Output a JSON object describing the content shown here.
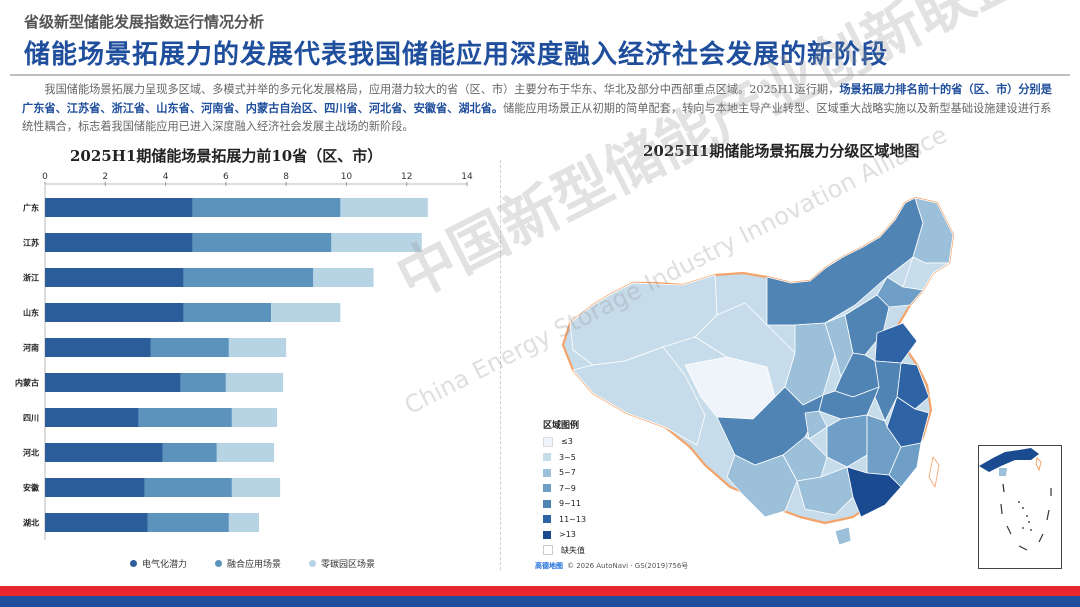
{
  "header": {
    "supertitle": "省级新型储能发展指数运行情况分析",
    "headline": "储能场景拓展力的发展代表我国储能应用深度融入经济社会发展的新阶段"
  },
  "summary": {
    "part1": "我国储能场景拓展力呈现多区域、多模式并举的多元化发展格局，应用潜力较大的省（区、市）主要分布于华东、华北及部分中西部重点区域。2025H1运行期，",
    "highlight": "场景拓展力排名前十的省（区、市）分别是广东省、江苏省、浙江省、山东省、河南省、内蒙古自治区、四川省、河北省、安徽省、湖北省。",
    "part2": "储能应用场景正从初期的简单配套，转向与本地主导产业转型、区域重大战略实施以及新型基础设施建设进行系统性耦合，标志着我国储能应用已进入深度融入经济社会发展主战场的新阶段。"
  },
  "left_chart_title": "2025H1期储能场景拓展力前10省（区、市）",
  "right_chart_title": "2025H1期储能场景拓展力分级区域地图",
  "chart_data": [
    {
      "type": "bar",
      "orientation": "horizontal",
      "stacked": true,
      "title": "2025H1期储能场景拓展力前10省（区、市）",
      "categories": [
        "广东",
        "江苏",
        "浙江",
        "山东",
        "河南",
        "内蒙古",
        "四川",
        "河北",
        "安徽",
        "湖北"
      ],
      "series": [
        {
          "name": "电气化潜力",
          "color": "#2b5d9b",
          "values": [
            4.9,
            4.9,
            4.6,
            4.6,
            3.5,
            4.5,
            3.1,
            3.9,
            3.3,
            3.4
          ]
        },
        {
          "name": "融合应用场景",
          "color": "#5b93bd",
          "values": [
            4.9,
            4.6,
            4.3,
            2.9,
            2.6,
            1.5,
            3.1,
            1.8,
            2.9,
            2.7
          ]
        },
        {
          "name": "零碳园区场景",
          "color": "#b7d4e4",
          "values": [
            2.9,
            3.0,
            2.0,
            2.3,
            1.9,
            1.9,
            1.5,
            1.9,
            1.6,
            1.0
          ]
        }
      ],
      "xlim": [
        0,
        14
      ],
      "xticks": [
        0,
        2,
        4,
        6,
        8,
        10,
        12,
        14
      ],
      "xlabel": "",
      "ylabel": "",
      "legend_position": "bottom",
      "grid": false
    },
    {
      "type": "heatmap",
      "subtype": "choropleth map",
      "title": "2025H1期储能场景拓展力分级区域地图",
      "legend_title": "区域图例",
      "legend": [
        {
          "label": "≤3",
          "color": "#eef4f9"
        },
        {
          "label": "3~5",
          "color": "#c7dcea"
        },
        {
          "label": "5~7",
          "color": "#9dc0da"
        },
        {
          "label": "7~9",
          "color": "#6f9fc6"
        },
        {
          "label": "9~11",
          "color": "#4f84b4"
        },
        {
          "label": "11~13",
          "color": "#2e64a5"
        },
        {
          "label": ">13",
          "color": "#1a4a8f"
        },
        {
          "label": "缺失值",
          "color": "#ffffff"
        }
      ]
    }
  ],
  "map_credit": {
    "logo": "高德地图",
    "text": "© 2026 AutoNavi · GS(2019)756号"
  },
  "watermark": {
    "cn": "中国新型储能产业创新联盟",
    "en": "China Energy Storage Industry Innovation Alliance"
  },
  "colors": {
    "brand_blue": "#1f4e9c",
    "footer_red": "#e8262d",
    "map_border": "#f4a36a"
  }
}
